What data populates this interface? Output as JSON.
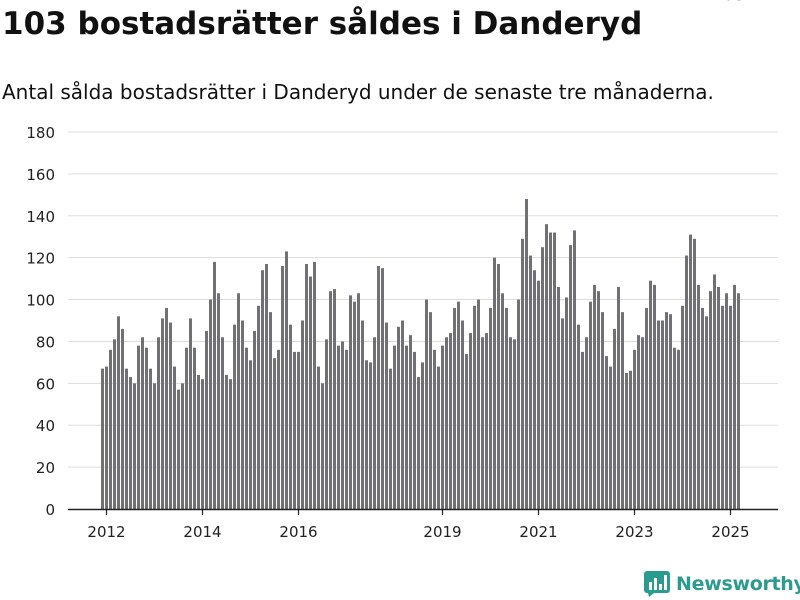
{
  "title": "103 bostadsrätter såldes i Danderyd",
  "subtitle": "Antal sålda bostadsrätter i Danderyd under de senaste tre månaderna.",
  "brand": {
    "name": "Newsworthy",
    "color": "#2b9a8f",
    "icon": "bar-chart-logo-icon"
  },
  "colors": {
    "bar": "#707075",
    "highlight": "#2b9a8f",
    "grid": "#dddddd",
    "axis": "#222222"
  },
  "chart_data": {
    "type": "bar",
    "title": "103 bostadsrätter såldes i Danderyd",
    "xlabel": "",
    "ylabel": "",
    "ylim": [
      0,
      180
    ],
    "yticks": [
      0,
      20,
      40,
      60,
      80,
      100,
      120,
      140,
      160,
      180
    ],
    "grid": true,
    "xtick_labels": [
      {
        "label": "2012",
        "index": 1
      },
      {
        "label": "2014",
        "index": 25
      },
      {
        "label": "2016",
        "index": 49
      },
      {
        "label": "2019",
        "index": 85
      },
      {
        "label": "2021",
        "index": 109
      },
      {
        "label": "2023",
        "index": 133
      },
      {
        "label": "2025",
        "index": 157
      }
    ],
    "highlight_index": 160,
    "highlight_label": "103",
    "values": [
      67,
      68,
      76,
      81,
      92,
      86,
      67,
      63,
      60,
      78,
      82,
      77,
      67,
      60,
      82,
      91,
      96,
      89,
      68,
      57,
      60,
      77,
      91,
      77,
      64,
      62,
      85,
      100,
      118,
      103,
      82,
      64,
      62,
      88,
      103,
      90,
      77,
      71,
      85,
      97,
      114,
      117,
      94,
      72,
      76,
      116,
      123,
      88,
      75,
      75,
      90,
      117,
      111,
      118,
      68,
      60,
      81,
      104,
      105,
      78,
      80,
      76,
      102,
      99,
      103,
      90,
      71,
      70,
      82,
      116,
      115,
      89,
      67,
      78,
      87,
      90,
      78,
      83,
      75,
      63,
      70,
      100,
      94,
      76,
      68,
      78,
      82,
      84,
      96,
      99,
      90,
      74,
      84,
      97,
      100,
      82,
      84,
      96,
      120,
      117,
      103,
      96,
      82,
      81,
      100,
      129,
      148,
      121,
      114,
      109,
      125,
      136,
      132,
      132,
      106,
      91,
      101,
      126,
      133,
      88,
      75,
      82,
      99,
      107,
      104,
      94,
      73,
      68,
      86,
      106,
      94,
      65,
      66,
      76,
      83,
      82,
      96,
      109,
      107,
      90,
      90,
      94,
      93,
      77,
      76,
      97,
      121,
      131,
      129,
      107,
      96,
      92,
      104,
      112,
      106,
      97,
      103,
      97,
      107,
      103
    ]
  }
}
